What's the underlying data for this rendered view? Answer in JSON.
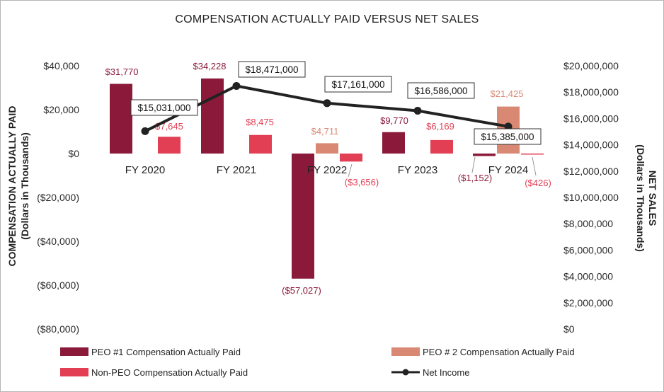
{
  "chart_data": {
    "type": "bar",
    "title": "COMPENSATION ACTUALLY PAID VERSUS NET SALES",
    "categories": [
      "FY 2020",
      "FY 2021",
      "FY 2022",
      "FY 2023",
      "FY 2024"
    ],
    "y_left": {
      "label": "COMPENSATION ACTUALLY PAID",
      "sublabel": "(Dollars in Thousands)",
      "lim": [
        -80000,
        40000
      ],
      "ticks": [
        40000,
        20000,
        0,
        -20000,
        -40000,
        -60000,
        -80000
      ],
      "tick_labels": [
        "$40,000",
        "$20,000",
        "$0",
        "($20,000)",
        "($40,000)",
        "($60,000)",
        "($80,000)"
      ]
    },
    "y_right": {
      "label": "NET SALES",
      "sublabel": "(Dollars in Thousands)",
      "lim": [
        0,
        20000000
      ],
      "ticks": [
        20000000,
        18000000,
        16000000,
        14000000,
        12000000,
        10000000,
        8000000,
        6000000,
        4000000,
        2000000,
        0
      ],
      "tick_labels": [
        "$20,000,000",
        "$18,000,000",
        "$16,000,000",
        "$14,000,000",
        "$12,000,000",
        "$10,000,000",
        "$8,000,000",
        "$6,000,000",
        "$4,000,000",
        "$2,000,000",
        "$0"
      ]
    },
    "series": [
      {
        "name": "PEO #1 Compensation Actually Paid",
        "color": "#8b1a3a",
        "label_color": "#8b1a3a",
        "values": [
          31770,
          34228,
          -57027,
          9770,
          -1152
        ],
        "labels": [
          "$31,770",
          "$34,228",
          "($57,027)",
          "$9,770",
          "($1,152)"
        ]
      },
      {
        "name": "PEO # 2 Compensation Actually Paid",
        "color": "#d98873",
        "label_color": "#d98873",
        "values": [
          null,
          null,
          4711,
          null,
          21425
        ],
        "labels": [
          null,
          null,
          "$4,711",
          null,
          "$21,425"
        ]
      },
      {
        "name": "Non-PEO Compensation Actually Paid",
        "color": "#e23f55",
        "label_color": "#e23f55",
        "values": [
          7645,
          8475,
          -3656,
          6169,
          -426
        ],
        "labels": [
          "$7,645",
          "$8,475",
          "($3,656)",
          "$6,169",
          "($426)"
        ]
      }
    ],
    "line": {
      "name": "Net Income",
      "color": "#222222",
      "values": [
        15031000,
        18471000,
        17161000,
        16586000,
        15385000
      ],
      "labels": [
        "$15,031,000",
        "$18,471,000",
        "$17,161,000",
        "$16,586,000",
        "$15,385,000"
      ]
    },
    "legend": [
      {
        "name": "PEO #1 Compensation Actually Paid",
        "kind": "bar",
        "color": "#8b1a3a"
      },
      {
        "name": "PEO # 2 Compensation Actually Paid",
        "kind": "bar",
        "color": "#d98873"
      },
      {
        "name": "Non-PEO Compensation Actually Paid",
        "kind": "bar",
        "color": "#e23f55"
      },
      {
        "name": "Net Income",
        "kind": "line",
        "color": "#222222"
      }
    ],
    "legend_position": "bottom"
  }
}
